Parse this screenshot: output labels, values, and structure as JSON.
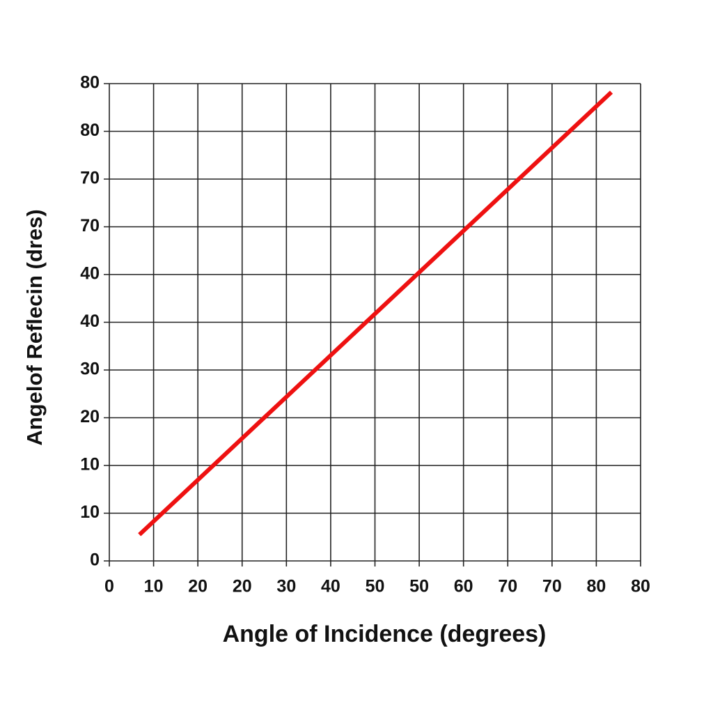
{
  "chart_data": {
    "type": "line",
    "xlabel": "Angle of Incidence (degrees)",
    "ylabel": "Angelof Reflecin (dres)",
    "x": [
      6.8,
      113.4
    ],
    "values": [
      5.5,
      98.2
    ],
    "color": "#ee1111",
    "xlim": [
      0,
      120
    ],
    "ylim": [
      0,
      100
    ],
    "xticks": [
      0,
      10,
      {
        "value": 20,
        "label": "20"
      },
      {
        "value": 30,
        "label": "20"
      },
      {
        "value": 40,
        "label": "30"
      },
      {
        "value": 50,
        "label": "40"
      },
      {
        "value": 60,
        "label": "50"
      },
      {
        "value": 70,
        "label": "50"
      },
      {
        "value": 80,
        "label": "60"
      },
      {
        "value": 90,
        "label": "70"
      },
      {
        "value": 100,
        "label": "70"
      },
      {
        "value": 110,
        "label": "80"
      },
      {
        "value": 120,
        "label": "80"
      }
    ],
    "yticks": [
      0,
      10,
      {
        "value": 20,
        "label": "10"
      },
      {
        "value": 30,
        "label": "20"
      },
      {
        "value": 40,
        "label": "30"
      },
      {
        "value": 50,
        "label": "40"
      },
      {
        "value": 60,
        "label": "40"
      },
      {
        "value": 70,
        "label": "70"
      },
      {
        "value": 80,
        "label": "70"
      },
      {
        "value": 90,
        "label": "80"
      },
      {
        "value": 100,
        "label": "80"
      }
    ],
    "grid": true
  }
}
